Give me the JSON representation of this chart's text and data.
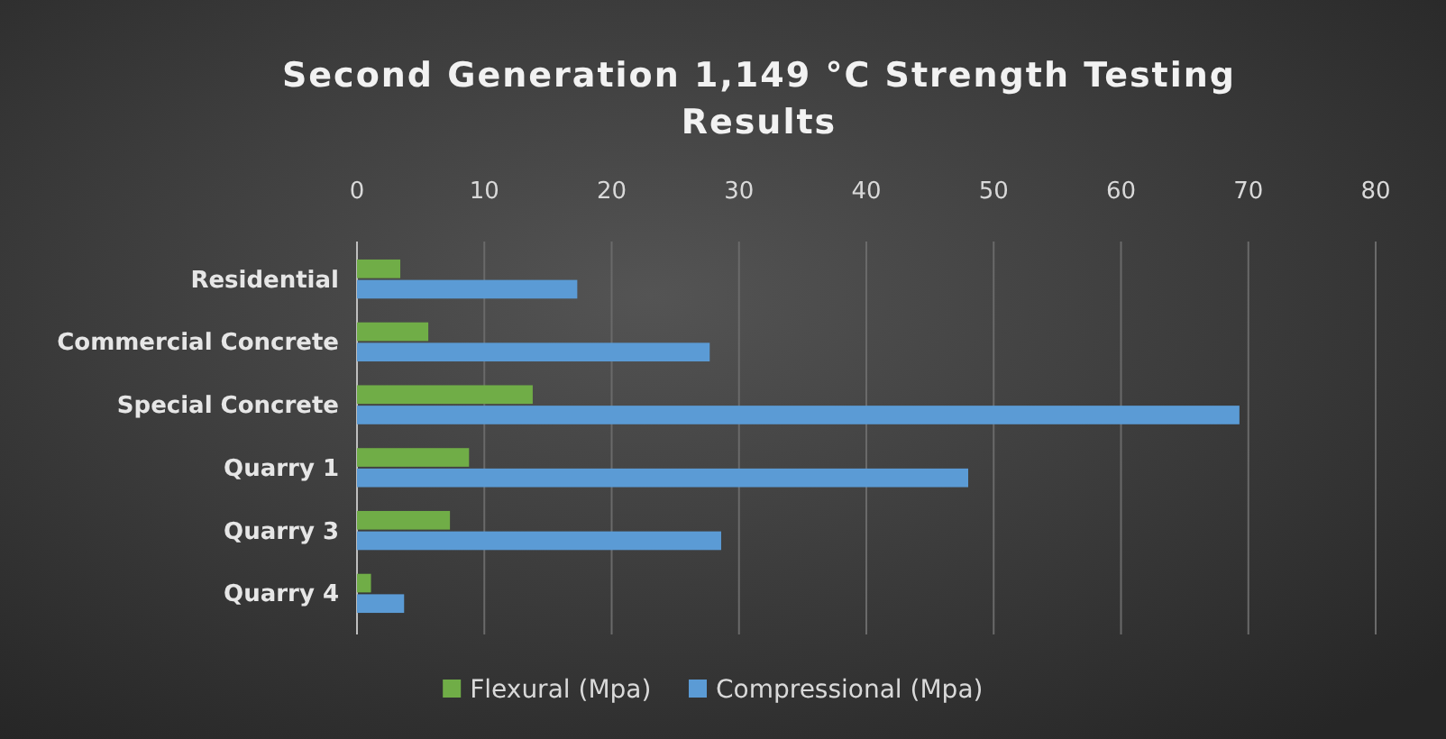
{
  "chart_data": {
    "type": "bar",
    "orientation": "horizontal",
    "title": "Second Generation 1,149 °C Strength Testing Results",
    "categories": [
      "Residential",
      "Commercial Concrete",
      "Special Concrete",
      "Quarry 1",
      "Quarry 3",
      "Quarry 4"
    ],
    "series": [
      {
        "name": "Flexural (Mpa)",
        "color": "#70ad47",
        "values": [
          3.4,
          5.6,
          13.8,
          8.8,
          7.3,
          1.1
        ]
      },
      {
        "name": "Compressional (Mpa)",
        "color": "#5b9bd5",
        "values": [
          17.3,
          27.7,
          69.3,
          48,
          28.6,
          3.7
        ]
      }
    ],
    "xlim": [
      0,
      80
    ],
    "xticks": [
      0,
      10,
      20,
      30,
      40,
      50,
      60,
      70,
      80
    ],
    "grid": "x",
    "legend": "bottom"
  }
}
